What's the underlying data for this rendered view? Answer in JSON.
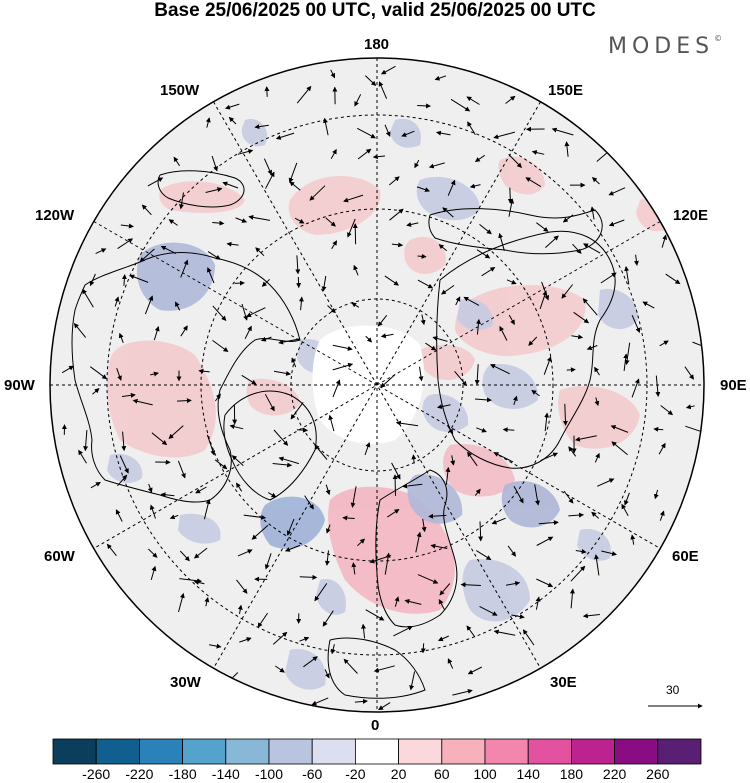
{
  "title": "Base 25/06/2025 00 UTC, valid 25/06/2025 00 UTC",
  "logo": "MODES",
  "logo_mark": "©",
  "longitude_labels": {
    "top": "180",
    "bottom": "0",
    "left": "90W",
    "right": "90E",
    "upper_left_1": "150W",
    "upper_left_2": "120W",
    "upper_right_1": "150E",
    "upper_right_2": "120E",
    "lower_left_1": "60W",
    "lower_left_2": "30W",
    "lower_right_1": "60E",
    "lower_right_2": "30E"
  },
  "vector_scale": {
    "label": "30"
  },
  "colorbar": {
    "colors": [
      "#0b3d5c",
      "#115f8f",
      "#2a82b8",
      "#55a2cc",
      "#88b7d8",
      "#b8c4e0",
      "#dddff0",
      "#ffffff",
      "#fbd8dc",
      "#f6b1bd",
      "#f187ad",
      "#e3529e",
      "#bd2291",
      "#8a0c83",
      "#581f74"
    ],
    "labels": [
      "-260",
      "-220",
      "-180",
      "-140",
      "-100",
      "-60",
      "-20",
      "20",
      "60",
      "100",
      "140",
      "180",
      "220",
      "260"
    ]
  },
  "map": {
    "projection": "north-polar-stereographic",
    "ocean_fill": "#efefef",
    "land_outline": "#000000",
    "positive_anomaly_color": "#f2c4c6",
    "negative_anomaly_color": "#c8cce0"
  }
}
